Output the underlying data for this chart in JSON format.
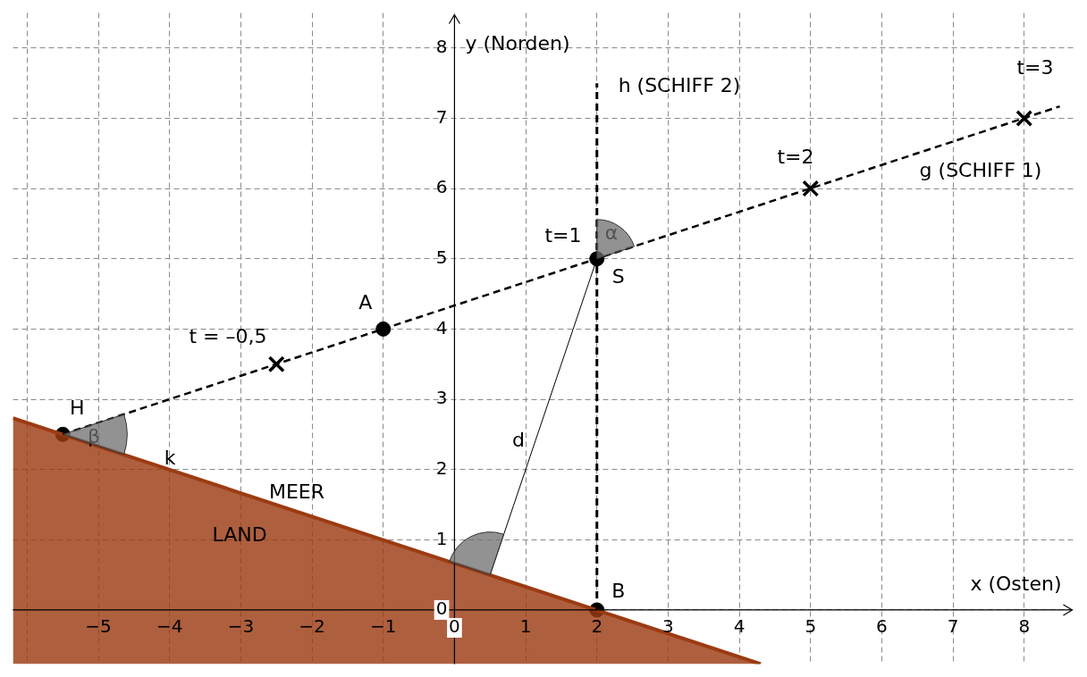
{
  "chart_data": {
    "type": "line",
    "xlabel": "x (Osten)",
    "ylabel": "y (Norden)",
    "xlim": [
      -6.2,
      8.7
    ],
    "ylim": [
      -0.77,
      8.5
    ],
    "xticks": [
      {
        "value": -6,
        "label": null
      },
      -5,
      -4,
      -3,
      -2,
      -1,
      0,
      1,
      2,
      3,
      4,
      5,
      6,
      7,
      8
    ],
    "yticks": [
      0,
      1,
      2,
      3,
      4,
      5,
      6,
      7,
      8
    ],
    "grid": true,
    "legend": false,
    "series": [
      {
        "name": "g (SCHIFF 1)",
        "color": "#000000",
        "line_style": "dashed",
        "x": [
          -5.5,
          8.5
        ],
        "values": [
          2.5,
          7.17
        ]
      },
      {
        "name": "h (SCHIFF 2)",
        "color": "#000000",
        "line_style": "dashed",
        "x": [
          2,
          2
        ],
        "values": [
          0,
          7.5
        ]
      },
      {
        "name": "k",
        "type": "area",
        "color": "#9c3b12",
        "line_style": "solid",
        "x": [
          -6.2,
          4.3
        ],
        "values": [
          2.73,
          -0.77
        ]
      },
      {
        "name": "d",
        "color": "#000000",
        "line_style": "solid",
        "x": [
          0.5,
          2
        ],
        "values": [
          0.5,
          5
        ]
      },
      {
        "type": "scatter",
        "color": "#000000",
        "marker": "circle",
        "x": [
          -1,
          2,
          2,
          -5.5
        ],
        "values": [
          4,
          5,
          0,
          2.5
        ],
        "value_labels": [
          "A",
          "S",
          "B",
          "H"
        ]
      },
      {
        "type": "scatter",
        "color": "#000000",
        "marker": "cross",
        "x": [
          -2.5,
          5,
          8
        ],
        "values": [
          3.5,
          6,
          7
        ]
      }
    ],
    "annotations": [
      "t=1",
      "α",
      "β",
      "MEER",
      "LAND",
      "t = –0,5",
      "t=2",
      "t=3"
    ]
  }
}
